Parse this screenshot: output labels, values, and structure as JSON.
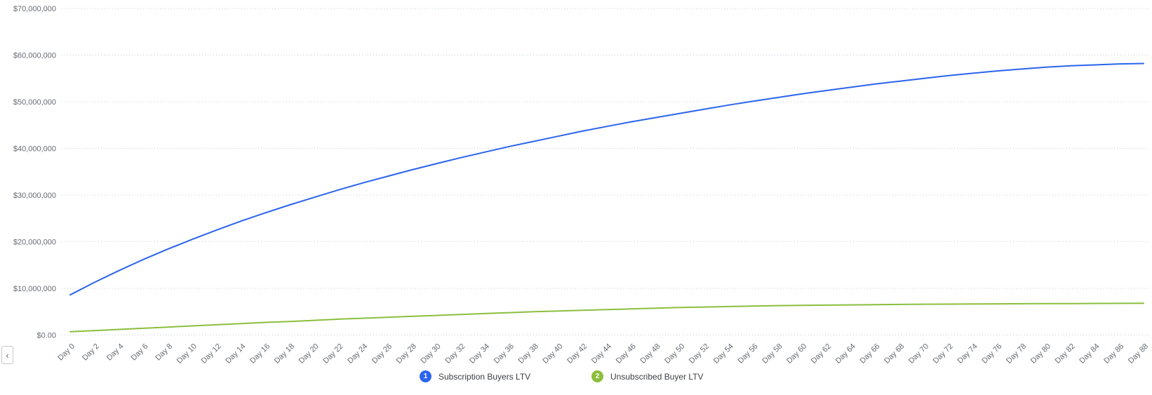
{
  "colors": {
    "background": "#ffffff",
    "gridline": "#c2cdd6",
    "axis_label": "#666b71",
    "legend_text": "#3c4043",
    "series_blue": "#2b64ed",
    "series_green": "#8cbe3d"
  },
  "pagination": {
    "prev_icon": "‹"
  },
  "legend": {
    "items": [
      {
        "number": "1",
        "label": "Subscription Buyers LTV",
        "color": "#2b64ed"
      },
      {
        "number": "2",
        "label": "Unsubscribed Buyer LTV",
        "color": "#8cbe3d"
      }
    ]
  },
  "chart_data": {
    "type": "line",
    "title": "",
    "xlabel": "",
    "ylabel": "",
    "grid": "horizontal-dotted",
    "legend_position": "bottom-center",
    "ylim_millions": [
      0,
      70
    ],
    "y_tick_labels": [
      "$70,000,000",
      "$60,000,000",
      "$50,000,000",
      "$40,000,000",
      "$30,000,000",
      "$20,000,000",
      "$10,000,000",
      "$0.00"
    ],
    "x_tick_days": [
      0,
      2,
      4,
      6,
      8,
      10,
      12,
      14,
      16,
      18,
      20,
      22,
      24,
      26,
      28,
      30,
      32,
      34,
      36,
      38,
      40,
      42,
      44,
      46,
      48,
      50,
      52,
      54,
      56,
      58,
      60,
      62,
      64,
      66,
      68,
      70,
      72,
      74,
      76,
      78,
      80,
      82,
      84,
      86,
      88
    ],
    "x_tick_labels": [
      "Day 0",
      "Day 2",
      "Day 4",
      "Day 6",
      "Day 8",
      "Day 10",
      "Day 12",
      "Day 14",
      "Day 16",
      "Day 18",
      "Day 20",
      "Day 22",
      "Day 24",
      "Day 26",
      "Day 28",
      "Day 30",
      "Day 32",
      "Day 34",
      "Day 36",
      "Day 38",
      "Day 40",
      "Day 42",
      "Day 44",
      "Day 46",
      "Day 48",
      "Day 50",
      "Day 52",
      "Day 54",
      "Day 56",
      "Day 58",
      "Day 60",
      "Day 62",
      "Day 64",
      "Day 66",
      "Day 68",
      "Day 70",
      "Day 72",
      "Day 74",
      "Day 76",
      "Day 78",
      "Day 80",
      "Day 82",
      "Day 84",
      "Day 86",
      "Day 88"
    ],
    "series": [
      {
        "name": "Subscription Buyers LTV",
        "color": "#2b64ed",
        "values_millions": [
          8.6,
          11.3,
          13.8,
          16.2,
          18.4,
          20.5,
          22.5,
          24.4,
          26.2,
          27.9,
          29.5,
          31.1,
          32.6,
          34.0,
          35.4,
          36.7,
          38.0,
          39.2,
          40.4,
          41.5,
          42.6,
          43.7,
          44.7,
          45.7,
          46.6,
          47.5,
          48.4,
          49.3,
          50.1,
          50.9,
          51.7,
          52.4,
          53.1,
          53.8,
          54.4,
          55.0,
          55.6,
          56.1,
          56.6,
          57.0,
          57.4,
          57.7,
          57.9,
          58.1,
          58.2
        ]
      },
      {
        "name": "Unsubscribed Buyer LTV",
        "color": "#8cbe3d",
        "values_millions": [
          0.7,
          0.95,
          1.2,
          1.45,
          1.7,
          1.95,
          2.2,
          2.45,
          2.7,
          2.9,
          3.15,
          3.4,
          3.6,
          3.8,
          4.0,
          4.2,
          4.4,
          4.6,
          4.8,
          5.0,
          5.15,
          5.3,
          5.45,
          5.6,
          5.75,
          5.9,
          6.0,
          6.1,
          6.2,
          6.3,
          6.35,
          6.4,
          6.45,
          6.5,
          6.55,
          6.6,
          6.62,
          6.65,
          6.68,
          6.7,
          6.72,
          6.74,
          6.76,
          6.78,
          6.8
        ]
      }
    ]
  }
}
